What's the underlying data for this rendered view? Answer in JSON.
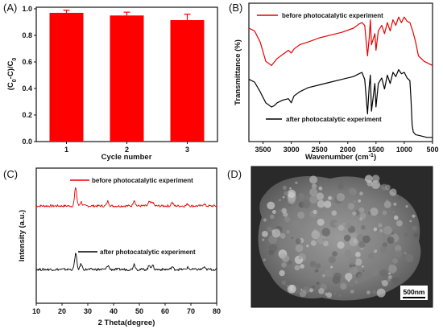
{
  "chart_data": [
    {
      "panel": "(A)",
      "type": "bar",
      "categories": [
        "1",
        "2",
        "3"
      ],
      "values": [
        0.97,
        0.95,
        0.915
      ],
      "errors": [
        0.02,
        0.025,
        0.045
      ],
      "xlabel": "Cycle number",
      "ylabel_parts": [
        "(C",
        "0",
        "-C)/C",
        "0"
      ],
      "ylim": [
        0,
        1.0
      ],
      "yticks": [
        "0.0",
        "0.2",
        "0.4",
        "0.6",
        "0.8",
        "1.0"
      ],
      "bar_color": "#ff0000"
    },
    {
      "panel": "(B)",
      "type": "line",
      "xlabel_parts": [
        "Wavenumber (cm",
        "-1",
        ")"
      ],
      "ylabel": "Transmittance (%)",
      "xlim": [
        3750,
        500
      ],
      "xticks": [
        "3500",
        "3000",
        "2500",
        "2000",
        "1500",
        "1000",
        "500"
      ],
      "series": [
        {
          "name": "before photocatalytic experiment",
          "color": "#e60000",
          "x": [
            3750,
            3650,
            3550,
            3450,
            3350,
            3250,
            3150,
            3050,
            3000,
            2950,
            2850,
            2700,
            2500,
            2300,
            2100,
            1900,
            1800,
            1750,
            1700,
            1650,
            1620,
            1600,
            1580,
            1520,
            1500,
            1460,
            1400,
            1350,
            1300,
            1250,
            1200,
            1150,
            1100,
            1050,
            1000,
            950,
            900,
            850,
            800,
            750,
            650,
            500
          ],
          "y": [
            0.82,
            0.8,
            0.72,
            0.58,
            0.55,
            0.6,
            0.63,
            0.66,
            0.64,
            0.67,
            0.7,
            0.72,
            0.75,
            0.77,
            0.79,
            0.82,
            0.85,
            0.86,
            0.84,
            0.62,
            0.75,
            0.88,
            0.7,
            0.78,
            0.66,
            0.8,
            0.84,
            0.78,
            0.86,
            0.8,
            0.88,
            0.84,
            0.9,
            0.86,
            0.9,
            0.87,
            0.86,
            0.8,
            0.72,
            0.62,
            0.58,
            0.55
          ]
        },
        {
          "name": "after photocatalytic experiment",
          "color": "#000000",
          "x": [
            3750,
            3650,
            3550,
            3450,
            3350,
            3300,
            3250,
            3150,
            3050,
            3000,
            2950,
            2850,
            2700,
            2500,
            2300,
            2100,
            1900,
            1800,
            1750,
            1700,
            1650,
            1620,
            1600,
            1580,
            1520,
            1500,
            1460,
            1400,
            1350,
            1300,
            1250,
            1200,
            1150,
            1100,
            1050,
            1000,
            950,
            900,
            880,
            860,
            840,
            800,
            700,
            600,
            500
          ],
          "y": [
            0.45,
            0.43,
            0.36,
            0.28,
            0.25,
            0.26,
            0.28,
            0.3,
            0.31,
            0.28,
            0.33,
            0.36,
            0.39,
            0.41,
            0.43,
            0.45,
            0.47,
            0.49,
            0.5,
            0.45,
            0.2,
            0.4,
            0.48,
            0.22,
            0.42,
            0.25,
            0.42,
            0.46,
            0.38,
            0.48,
            0.42,
            0.5,
            0.47,
            0.52,
            0.49,
            0.5,
            0.46,
            0.44,
            0.3,
            0.12,
            0.07,
            0.05,
            0.04,
            0.03,
            0.03
          ]
        }
      ]
    },
    {
      "panel": "(C)",
      "type": "line",
      "xlabel": "2 Theta(degree)",
      "ylabel": "Intensity (a.u.)",
      "xlim": [
        10,
        80
      ],
      "xticks": [
        "10",
        "20",
        "30",
        "40",
        "50",
        "60",
        "70",
        "80"
      ],
      "series": [
        {
          "name": "before photocatalytic experiment",
          "color": "#e60000",
          "baseline": 0.72,
          "peaks": [
            [
              25.3,
              0.14
            ],
            [
              27.4,
              0.03
            ],
            [
              37.8,
              0.035
            ],
            [
              48.0,
              0.045
            ],
            [
              53.9,
              0.03
            ],
            [
              55.1,
              0.03
            ],
            [
              62.7,
              0.025
            ],
            [
              68.8,
              0.015
            ],
            [
              75.0,
              0.015
            ]
          ]
        },
        {
          "name": "after photocatalytic experiment",
          "color": "#000000",
          "baseline": 0.25,
          "peaks": [
            [
              25.3,
              0.12
            ],
            [
              27.4,
              0.04
            ],
            [
              37.8,
              0.03
            ],
            [
              48.0,
              0.04
            ],
            [
              53.9,
              0.03
            ],
            [
              55.1,
              0.03
            ],
            [
              62.7,
              0.02
            ],
            [
              68.8,
              0.015
            ],
            [
              75.0,
              0.015
            ]
          ]
        }
      ]
    }
  ],
  "panels": {
    "a": {
      "letter": "(A)"
    },
    "b": {
      "letter": "(B)"
    },
    "c": {
      "letter": "(C)"
    },
    "d": {
      "letter": "(D)",
      "scale_bar_label": "500nm"
    }
  }
}
